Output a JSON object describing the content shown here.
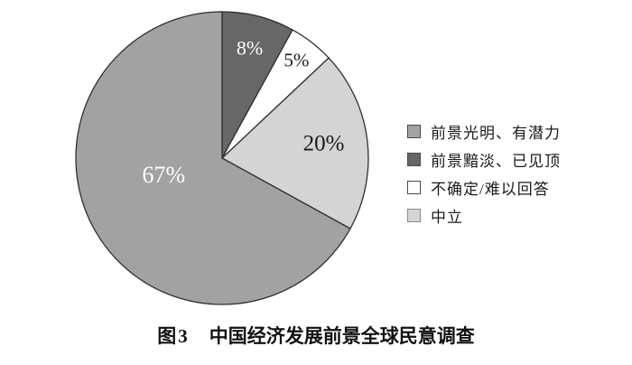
{
  "chart_data": {
    "type": "pie",
    "title": "图3 中国经济发展前景全球民意调查",
    "start_angle_deg": 0,
    "direction": "clockwise",
    "outline_color": "#2f2f2f",
    "slices": [
      {
        "label": "前景黯淡、已见顶",
        "value": 8,
        "display": "8%",
        "color": "#676767",
        "text_color": "#ffffff"
      },
      {
        "label": "不确定/难以回答",
        "value": 5,
        "display": "5%",
        "color": "#ffffff",
        "text_color": "#1a1a1a"
      },
      {
        "label": "中立",
        "value": 20,
        "display": "20%",
        "color": "#d4d4d4",
        "text_color": "#1a1a1a"
      },
      {
        "label": "前景光明、有潜力",
        "value": 67,
        "display": "67%",
        "color": "#a2a2a2",
        "text_color": "#ffffff"
      }
    ],
    "legend_position": "right",
    "legend": [
      {
        "label": "前景光明、有潜力",
        "color": "#a2a2a2",
        "border": "#4a4a4a"
      },
      {
        "label": "前景黯淡、已见顶",
        "color": "#676767",
        "border": "#4a4a4a"
      },
      {
        "label": "不确定/难以回答",
        "color": "#ffffff",
        "border": "#4a4a4a"
      },
      {
        "label": "中立",
        "color": "#d4d4d4",
        "border": "#8a8a8a"
      }
    ]
  },
  "caption": {
    "prefix": "图3",
    "title": "中国经济发展前景全球民意调查"
  }
}
